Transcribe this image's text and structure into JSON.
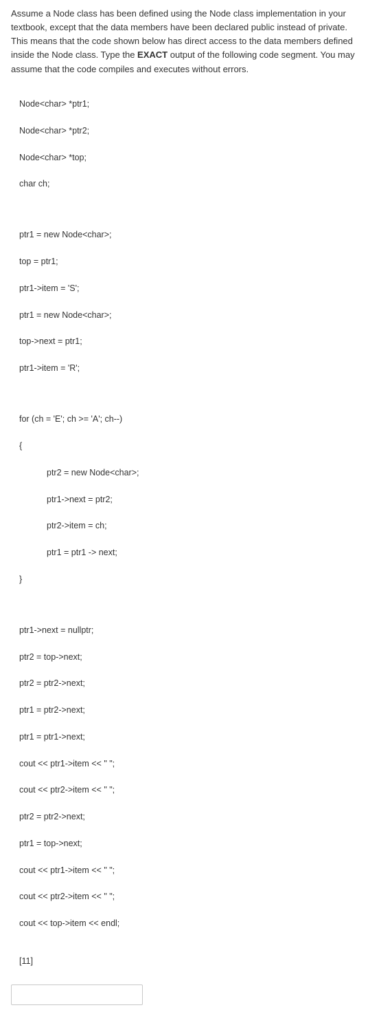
{
  "intro": {
    "pre": "Assume a Node class has been defined using the Node class implementation in your textbook, except that the data members have been declared public instead of private. This means that the code shown below has direct access to the data members defined inside the Node class. Type the ",
    "bold": "EXACT",
    "post": " output of the following code segment. You may assume that the code compiles and executes without errors."
  },
  "decl": {
    "l1": "Node<char> *ptr1;",
    "l2": "Node<char> *ptr2;",
    "l3": "Node<char> *top;",
    "l4": "char ch;"
  },
  "setup": {
    "l1": "ptr1 = new Node<char>;",
    "l2": "top = ptr1;",
    "l3": "ptr1->item = 'S';",
    "l4": "ptr1 = new Node<char>;",
    "l5": "top->next = ptr1;",
    "l6": "ptr1->item = 'R';"
  },
  "loop": {
    "header": "for (ch = 'E'; ch >= 'A'; ch--)",
    "open": "{",
    "b1": "ptr2 = new Node<char>;",
    "b2": "ptr1->next = ptr2;",
    "b3": "ptr2->item = ch;",
    "b4": "ptr1 = ptr1 -> next;",
    "close": "}"
  },
  "tail": {
    "l1": "ptr1->next = nullptr;",
    "l2": "ptr2 = top->next;",
    "l3": "ptr2 = ptr2->next;",
    "l4": "ptr1 = ptr2->next;",
    "l5": "ptr1 = ptr1->next;",
    "l6": "cout << ptr1->item << \" \";",
    "l7": "cout << ptr2->item << \" \";",
    "l8": "ptr2 = ptr2->next;",
    "l9": "ptr1 = top->next;",
    "l10": "cout << ptr1->item << \" \";",
    "l11": "cout << ptr2->item << \" \";",
    "l12": "cout << top->item << endl;"
  },
  "points": "[11]",
  "answer": ""
}
